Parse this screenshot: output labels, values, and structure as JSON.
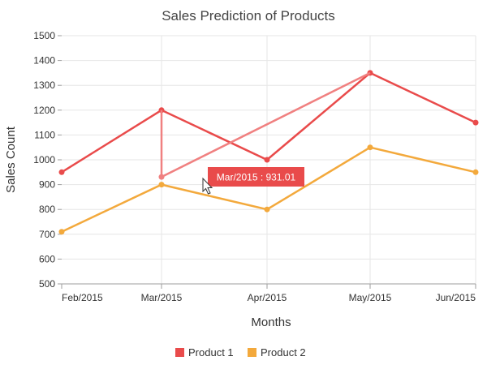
{
  "chart_data": {
    "type": "line",
    "title": "Sales Prediction of Products",
    "xlabel": "Months",
    "ylabel": "Sales Count",
    "categories": [
      "Feb/2015",
      "Mar/2015",
      "Apr/2015",
      "May/2015",
      "Jun/2015"
    ],
    "x_dates": [
      "2015-02",
      "2015-03",
      "2015-04",
      "2015-05",
      "2015-06"
    ],
    "ylim": [
      500,
      1500
    ],
    "yticks": [
      500,
      600,
      700,
      800,
      900,
      1000,
      1100,
      1200,
      1300,
      1400,
      1500
    ],
    "grid": true,
    "legend_position": "bottom-center",
    "series": [
      {
        "name": "Product 1",
        "color": "#e94b4b",
        "values": [
          950,
          1200,
          1000,
          1350,
          1150
        ],
        "dragged_point": {
          "category": "Mar/2015",
          "value": 931.01
        }
      },
      {
        "name": "Product 2",
        "color": "#f3a93c",
        "values": [
          710,
          900,
          800,
          1050,
          950
        ]
      }
    ],
    "tooltip": {
      "text": "Mar/2015 : 931.01",
      "color": "#e94b4b"
    }
  }
}
